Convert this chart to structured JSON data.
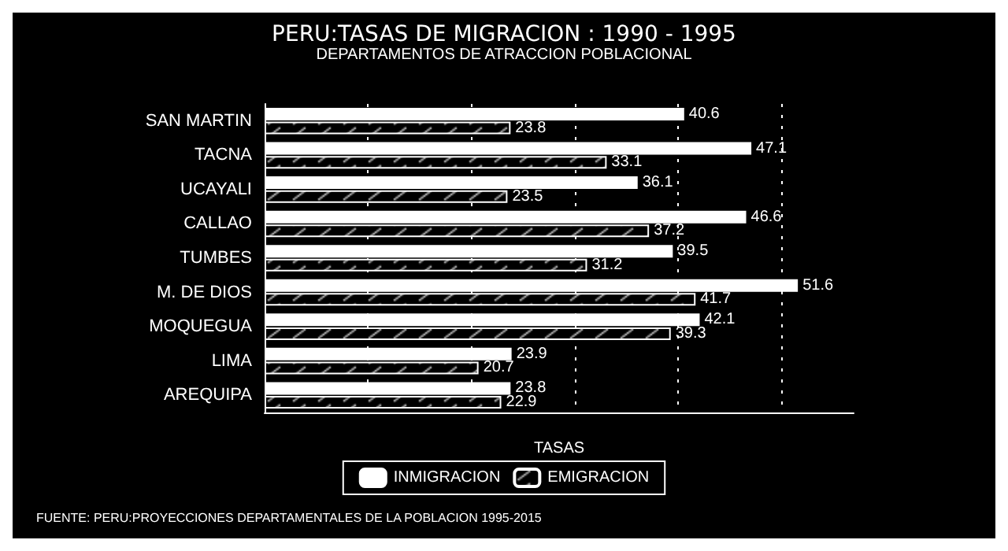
{
  "chart_data": {
    "type": "bar",
    "orientation": "horizontal",
    "title": "PERU:TASAS DE MIGRACION : 1990 - 1995",
    "subtitle": "DEPARTAMENTOS DE ATRACCION POBLACIONAL",
    "xlabel": "TASAS",
    "categories": [
      "SAN MARTIN",
      "TACNA",
      "UCAYALI",
      "CALLAO",
      "TUMBES",
      "M. DE DIOS",
      "MOQUEGUA",
      "LIMA",
      "AREQUIPA"
    ],
    "series": [
      {
        "name": "INMIGRACION",
        "color": "#ffffff",
        "values": [
          40.6,
          47.1,
          36.1,
          46.6,
          39.5,
          51.6,
          42.1,
          23.9,
          23.8
        ]
      },
      {
        "name": "EMIGRACION",
        "color": "#ffffff",
        "values": [
          23.8,
          33.1,
          23.5,
          37.2,
          31.2,
          41.7,
          39.3,
          20.7,
          22.9
        ]
      }
    ],
    "xlim": [
      0,
      57
    ],
    "xticks": [
      {
        "value": 0,
        "label": null
      },
      {
        "value": 10,
        "label": null
      },
      {
        "value": 20,
        "label": null
      },
      {
        "value": 30,
        "label": null
      },
      {
        "value": 40,
        "label": null
      },
      {
        "value": 50,
        "label": null
      }
    ],
    "tick_labels": "y",
    "grid": "x",
    "legend": "bottom",
    "data_labels": true,
    "annotations": [
      "FUENTE: PERU:PROYECCIONES DEPARTAMENTALES DE LA POBLACION 1995-2015"
    ]
  }
}
